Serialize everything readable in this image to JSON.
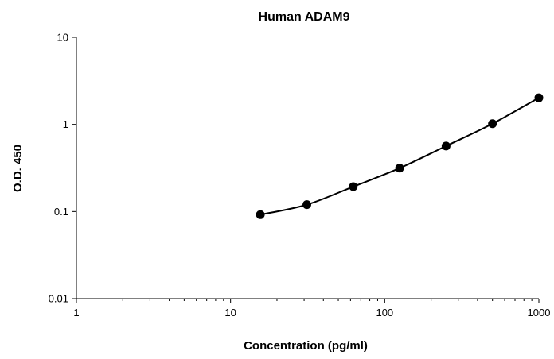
{
  "chart_data": {
    "type": "line",
    "title": "Human ADAM9",
    "xlabel": "Concentration (pg/ml)",
    "ylabel": "O.D. 450",
    "x_scale": "log",
    "y_scale": "log",
    "xlim": [
      1,
      1000
    ],
    "ylim": [
      0.01,
      10
    ],
    "x_ticks": [
      "1",
      "10",
      "100",
      "1000"
    ],
    "y_ticks": [
      "0.01",
      "0.1",
      "1",
      "10"
    ],
    "grid": false,
    "legend": "none",
    "series": [
      {
        "x": [
          15.6,
          31.25,
          62.5,
          125,
          250,
          500,
          1000
        ],
        "y": [
          0.092,
          0.12,
          0.193,
          0.315,
          0.565,
          1.02,
          2.02
        ]
      }
    ],
    "colors": {
      "line": "#000000",
      "marker": "#000000",
      "axis": "#000000"
    }
  }
}
